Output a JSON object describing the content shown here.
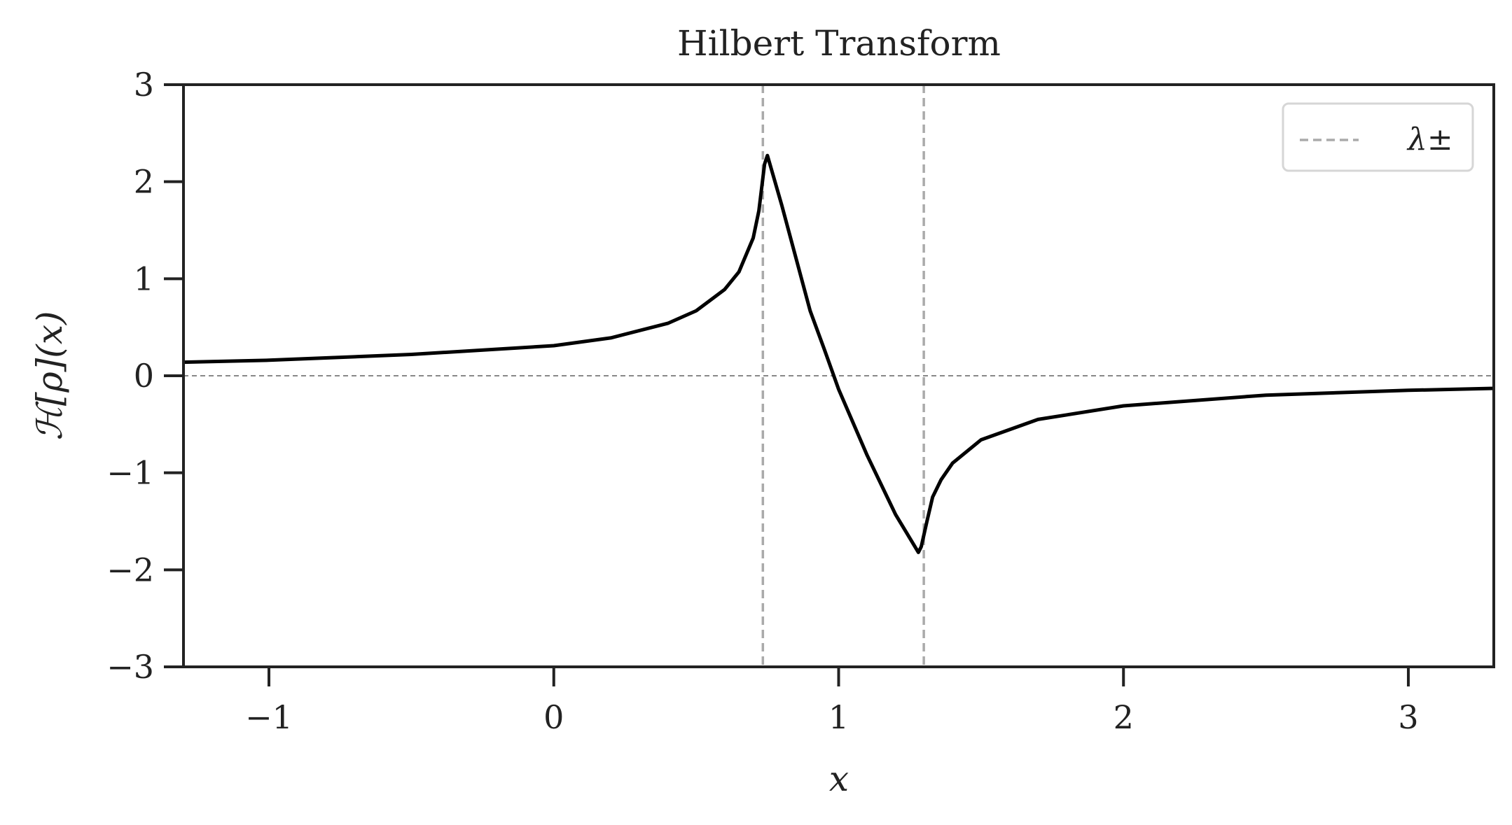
{
  "chart_data": {
    "type": "line",
    "title": "Hilbert Transform",
    "xlabel": "x",
    "ylabel": "ℋ[ρ](x)",
    "xlim": [
      -1.3,
      3.3
    ],
    "ylim": [
      -3,
      3
    ],
    "xticks": [
      -1,
      0,
      1,
      2,
      3
    ],
    "xtick_labels": [
      "−1",
      "0",
      "1",
      "2",
      "3"
    ],
    "yticks": [
      3,
      2,
      1,
      0,
      -1,
      -2,
      -3
    ],
    "ytick_labels": [
      "3",
      "2",
      "1",
      "0",
      "−1",
      "−2",
      "−3"
    ],
    "grid": false,
    "legend": {
      "position": "top-right",
      "entries": [
        {
          "label": "λ±",
          "style": "dashed",
          "color": "#aaaaaa"
        }
      ]
    },
    "reference_lines": {
      "horizontal": [
        {
          "y": 0,
          "style": "dashed",
          "color": "#888888"
        }
      ],
      "vertical": [
        {
          "x": 0.734,
          "style": "dashed",
          "color": "#aaaaaa"
        },
        {
          "x": 1.299,
          "style": "dashed",
          "color": "#aaaaaa"
        }
      ]
    },
    "series": [
      {
        "color": "#000000",
        "x": [
          -1.3,
          -1.0,
          -0.5,
          0.0,
          0.2,
          0.4,
          0.5,
          0.6,
          0.65,
          0.7,
          0.72,
          0.74,
          0.75,
          0.8,
          0.9,
          0.95,
          1.0,
          1.1,
          1.2,
          1.28,
          1.29,
          1.31,
          1.33,
          1.36,
          1.4,
          1.5,
          1.7,
          2.0,
          2.5,
          3.0,
          3.3
        ],
        "y": [
          0.14,
          0.16,
          0.22,
          0.31,
          0.39,
          0.54,
          0.67,
          0.89,
          1.07,
          1.42,
          1.7,
          2.18,
          2.27,
          1.76,
          0.67,
          0.27,
          -0.14,
          -0.82,
          -1.43,
          -1.82,
          -1.76,
          -1.5,
          -1.25,
          -1.07,
          -0.9,
          -0.66,
          -0.45,
          -0.31,
          -0.2,
          -0.15,
          -0.13
        ]
      }
    ]
  }
}
